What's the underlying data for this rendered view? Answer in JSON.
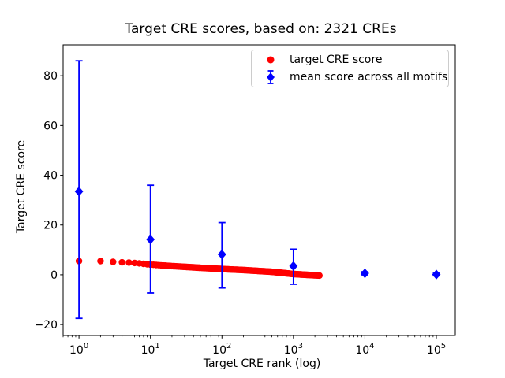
{
  "chart_data": {
    "type": "scatter",
    "title": "Target CRE scores, based on: 2321 CREs",
    "xlabel": "Target CRE rank (log)",
    "ylabel": "Target CRE score",
    "x_scale": "log",
    "grid": false,
    "legend_position": "upper right",
    "xlim": [
      0.6,
      184000
    ],
    "ylim": [
      -24.4,
      92.4
    ],
    "x_ticks": [
      {
        "value": 1,
        "base": "10",
        "exponent": "0"
      },
      {
        "value": 10,
        "base": "10",
        "exponent": "1"
      },
      {
        "value": 100,
        "base": "10",
        "exponent": "2"
      },
      {
        "value": 1000,
        "base": "10",
        "exponent": "3"
      },
      {
        "value": 10000,
        "base": "10",
        "exponent": "4"
      },
      {
        "value": 100000,
        "base": "10",
        "exponent": "5"
      }
    ],
    "y_ticks": [
      {
        "value": -20,
        "label": "−20"
      },
      {
        "value": 0,
        "label": "0"
      },
      {
        "value": 20,
        "label": "20"
      },
      {
        "value": 40,
        "label": "40"
      },
      {
        "value": 60,
        "label": "60"
      },
      {
        "value": 80,
        "label": "80"
      }
    ],
    "series": [
      {
        "name": "target CRE score",
        "color": "#ff0000",
        "marker": "circle",
        "total_points": 2321,
        "sample_points": [
          [
            1,
            5.5
          ],
          [
            2,
            5.5
          ],
          [
            3,
            5.2
          ],
          [
            4,
            5.0
          ],
          [
            5,
            4.9
          ],
          [
            7,
            4.6
          ],
          [
            10,
            4.1
          ],
          [
            20,
            3.5
          ],
          [
            50,
            2.8
          ],
          [
            100,
            2.3
          ],
          [
            200,
            1.9
          ],
          [
            500,
            1.2
          ],
          [
            1000,
            0.3
          ],
          [
            1500,
            0.0
          ],
          [
            2000,
            -0.2
          ],
          [
            2321,
            -0.3
          ]
        ]
      },
      {
        "name": "mean score across all motifs",
        "color": "#0000ff",
        "marker": "diamond",
        "points": [
          {
            "x": 1,
            "y": 33.5,
            "err_low": -17.5,
            "err_high": 86.0
          },
          {
            "x": 10,
            "y": 14.2,
            "err_low": -7.3,
            "err_high": 36.0
          },
          {
            "x": 100,
            "y": 8.2,
            "err_low": -5.3,
            "err_high": 21.0
          },
          {
            "x": 1000,
            "y": 3.5,
            "err_low": -3.8,
            "err_high": 10.3
          },
          {
            "x": 10000,
            "y": 0.6,
            "err_low": 0.0,
            "err_high": 1.2
          },
          {
            "x": 100000,
            "y": 0.1,
            "err_low": -0.4,
            "err_high": 0.6
          }
        ]
      }
    ]
  }
}
